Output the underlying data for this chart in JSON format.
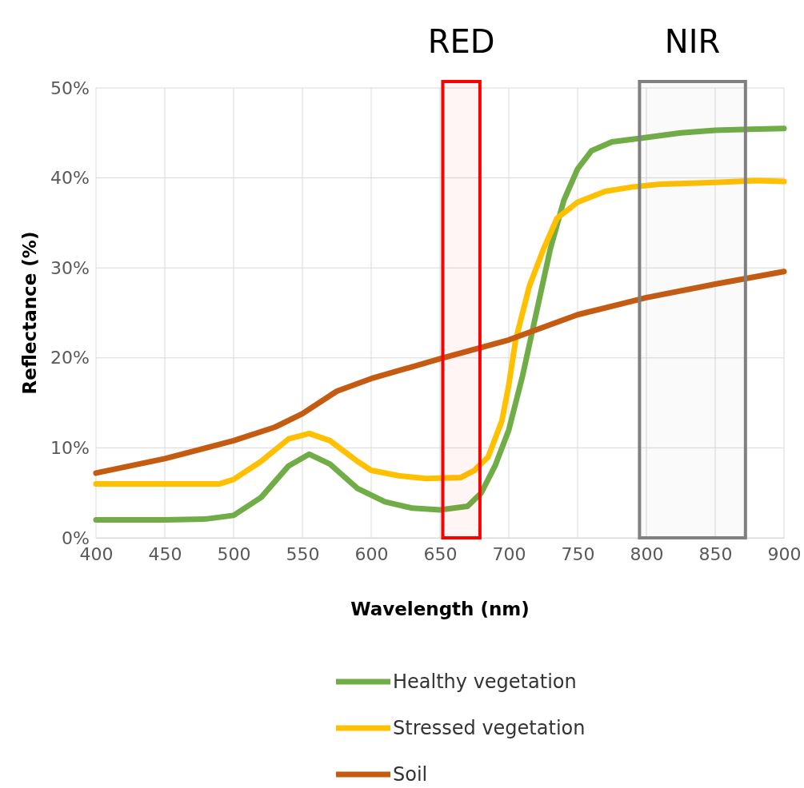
{
  "chart_data": {
    "type": "line",
    "xlabel": "Wavelength (nm)",
    "ylabel": "Reflectance (%)",
    "xlim": [
      400,
      900
    ],
    "xticks": [
      400,
      450,
      500,
      550,
      600,
      650,
      700,
      750,
      800,
      850,
      900
    ],
    "ylim": [
      0,
      50
    ],
    "yticks": [
      {
        "value": 0,
        "label": "0%"
      },
      {
        "value": 10,
        "label": "10%"
      },
      {
        "value": 20,
        "label": "20%"
      },
      {
        "value": 30,
        "label": "30%"
      },
      {
        "value": 40,
        "label": "40%"
      },
      {
        "value": 50,
        "label": "50%"
      }
    ],
    "grid": true,
    "legend": "bottom",
    "line_style": "solid",
    "marker": "none",
    "bands": [
      {
        "axis": "x",
        "from": 652,
        "to": 679,
        "label": "RED",
        "color": "#ff0000"
      },
      {
        "axis": "x",
        "from": 795,
        "to": 872,
        "label": "NIR",
        "color": "#808080"
      }
    ],
    "series": [
      {
        "name": "Healthy vegetation",
        "color": "#70ad47",
        "x": [
          400,
          450,
          480,
          500,
          520,
          540,
          555,
          570,
          590,
          610,
          630,
          650,
          670,
          680,
          690,
          700,
          710,
          720,
          730,
          740,
          750,
          760,
          775,
          790,
          800,
          825,
          850,
          875,
          900
        ],
        "values": [
          2,
          2,
          2.1,
          2.5,
          4.5,
          8,
          9.3,
          8.2,
          5.5,
          4,
          3.3,
          3.1,
          3.5,
          5,
          8,
          12,
          18,
          25,
          32,
          37.5,
          41,
          43,
          44,
          44.3,
          44.5,
          45,
          45.3,
          45.4,
          45.5
        ]
      },
      {
        "name": "Stressed vegetation",
        "color": "#ffc000",
        "x": [
          400,
          490,
          500,
          520,
          540,
          555,
          570,
          590,
          600,
          620,
          640,
          665,
          675,
          685,
          695,
          700,
          705,
          715,
          725,
          735,
          750,
          770,
          790,
          810,
          850,
          880,
          900
        ],
        "values": [
          6,
          6,
          6.5,
          8.5,
          11,
          11.6,
          10.8,
          8.5,
          7.5,
          6.9,
          6.6,
          6.7,
          7.5,
          9,
          13,
          17,
          22,
          28,
          32,
          35.5,
          37.3,
          38.5,
          39,
          39.3,
          39.5,
          39.7,
          39.6
        ]
      },
      {
        "name": "Soil",
        "color": "#c55a11",
        "x": [
          400,
          450,
          500,
          530,
          550,
          575,
          600,
          650,
          700,
          750,
          800,
          850,
          900
        ],
        "values": [
          7.2,
          8.8,
          10.8,
          12.3,
          13.8,
          16.3,
          17.7,
          19.9,
          22,
          24.8,
          26.7,
          28.2,
          29.6
        ]
      }
    ]
  }
}
